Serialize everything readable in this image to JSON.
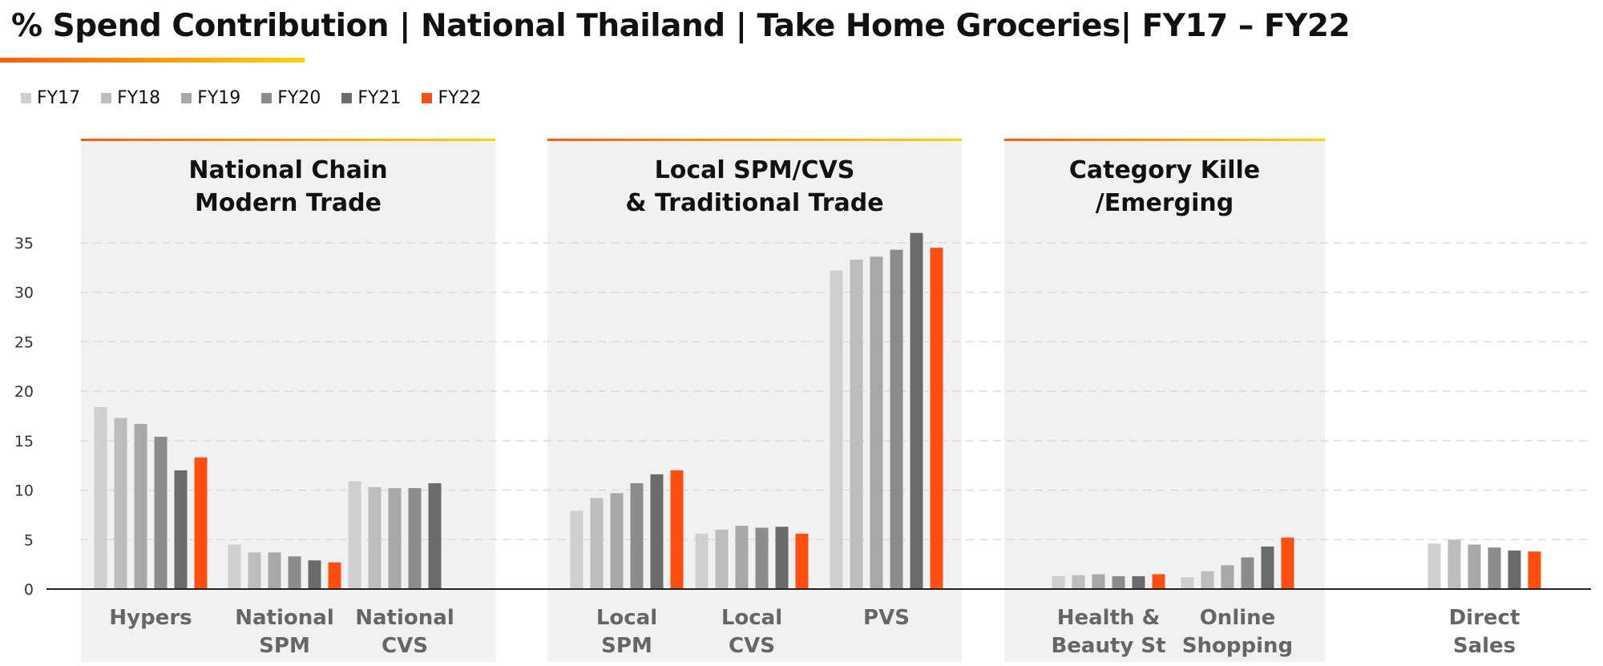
{
  "header": {
    "title": "% Spend Contribution | National Thailand | Take Home Groceries| FY17 – FY22"
  },
  "colors": {
    "FY17": "#cfcfcf",
    "FY18": "#bdbdbd",
    "FY19": "#a8a8a8",
    "FY20": "#8c8c8c",
    "FY21": "#6b6b6b",
    "FY22": "#ff4e0f",
    "panel": "#f1f1f1",
    "accent_start": "#ff5a10",
    "accent_end": "#ffd400"
  },
  "chart_data": {
    "type": "bar",
    "ylim": [
      0,
      35
    ],
    "yticks": [
      0,
      5,
      10,
      15,
      20,
      25,
      30,
      35
    ],
    "grid": true,
    "legend": "top-left",
    "series_names": [
      "FY17",
      "FY18",
      "FY19",
      "FY20",
      "FY21",
      "FY22"
    ],
    "groups": [
      {
        "title_lines": [
          "National Chain",
          "Modern Trade"
        ],
        "categories": [
          {
            "label_lines": [
              "Hypers"
            ],
            "values": [
              18.4,
              17.3,
              16.7,
              15.4,
              12.0,
              13.3
            ]
          },
          {
            "label_lines": [
              "National",
              "SPM"
            ],
            "values": [
              4.5,
              3.7,
              3.7,
              3.3,
              2.9,
              2.7
            ]
          },
          {
            "label_lines": [
              "National",
              "CVS"
            ],
            "values": [
              10.9,
              10.3,
              10.2,
              10.2,
              10.7,
              null
            ]
          }
        ]
      },
      {
        "title_lines": [
          "Local SPM/CVS",
          "& Traditional Trade"
        ],
        "categories": [
          {
            "label_lines": [
              "Local",
              "SPM"
            ],
            "values": [
              7.9,
              9.2,
              9.7,
              10.7,
              11.6,
              12.0
            ]
          },
          {
            "label_lines": [
              "Local",
              "CVS"
            ],
            "values": [
              5.6,
              6.0,
              6.4,
              6.2,
              6.3,
              5.6
            ]
          },
          {
            "label_lines": [
              "PVS"
            ],
            "values": [
              32.2,
              33.3,
              33.6,
              34.3,
              36.0,
              34.5
            ]
          }
        ]
      },
      {
        "title_lines": [
          "Category Kille",
          "/Emerging"
        ],
        "categories": [
          {
            "label_lines": [
              "Health &",
              "Beauty St"
            ],
            "values": [
              1.3,
              1.4,
              1.5,
              1.3,
              1.3,
              1.5
            ]
          },
          {
            "label_lines": [
              "Online",
              "Shopping"
            ],
            "values": [
              1.2,
              1.8,
              2.4,
              3.2,
              4.3,
              5.2
            ]
          }
        ]
      },
      {
        "title_lines": [],
        "categories": [
          {
            "label_lines": [
              "Direct",
              "Sales"
            ],
            "values": [
              4.6,
              5.0,
              4.5,
              4.2,
              3.9,
              3.8
            ]
          }
        ]
      }
    ]
  }
}
